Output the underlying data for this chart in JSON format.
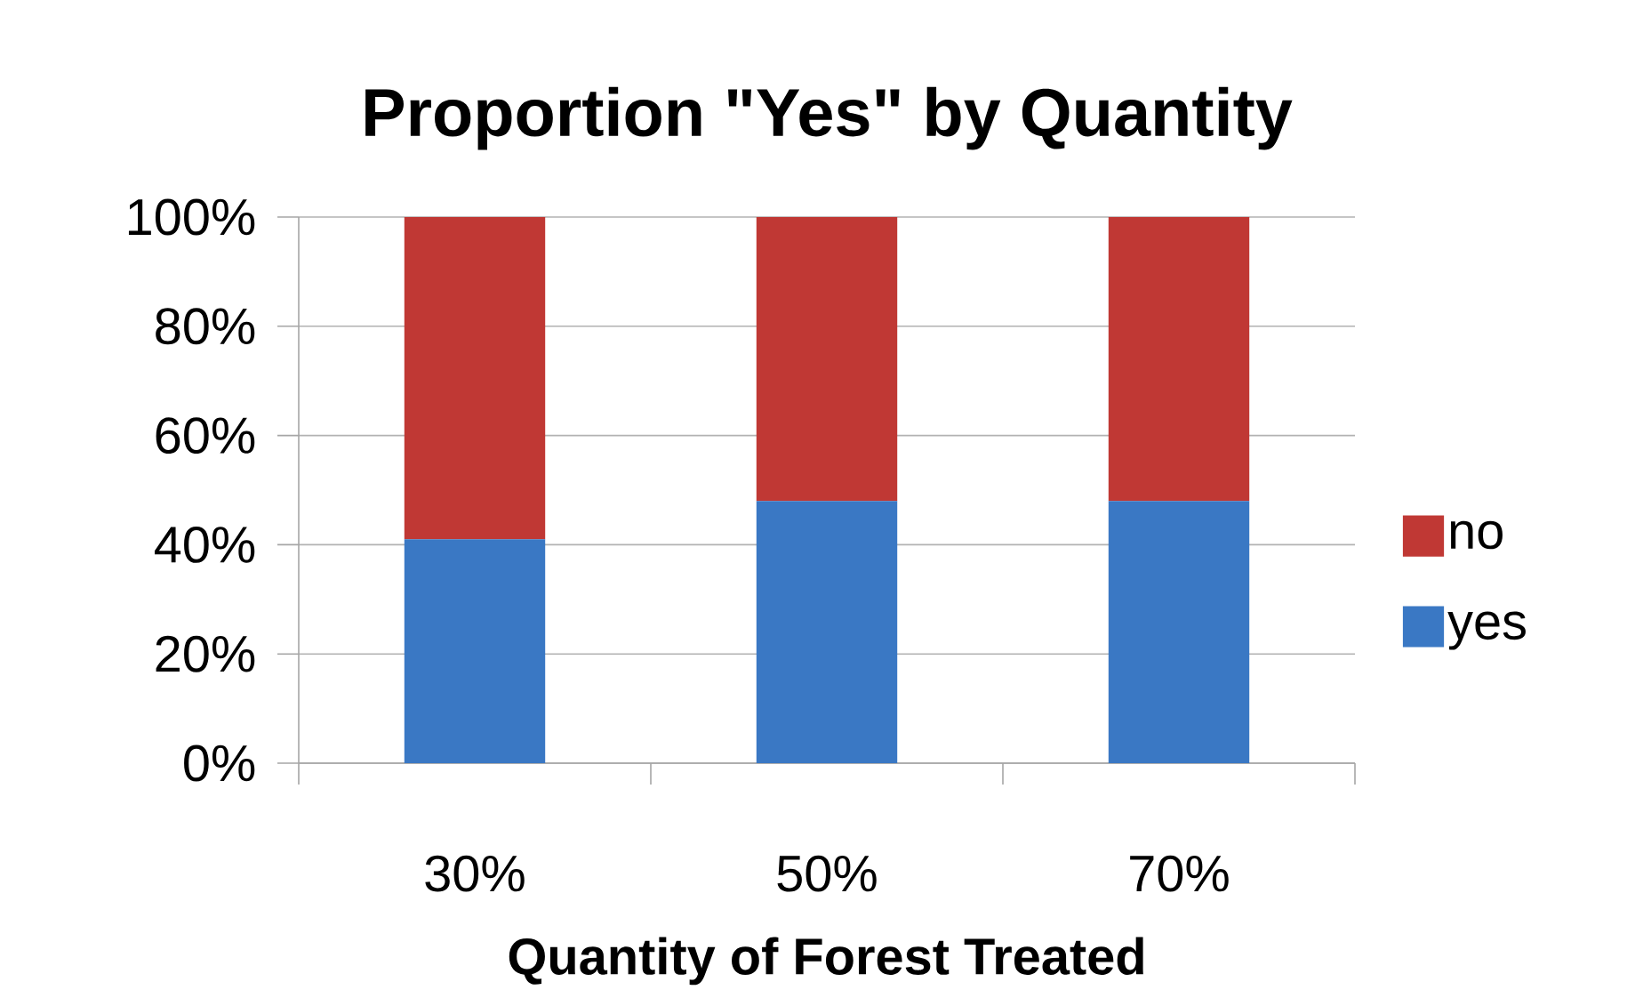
{
  "chart_data": {
    "type": "bar",
    "title": "Proportion \"Yes\" by Quantity",
    "xlabel": "Quantity of Forest Treated",
    "categories": [
      "30%",
      "50%",
      "70%"
    ],
    "stacked": true,
    "series": [
      {
        "name": "yes",
        "color": "#3a78c4",
        "values": [
          41,
          48,
          48
        ]
      },
      {
        "name": "no",
        "color": "#c03834",
        "values": [
          59,
          52,
          52
        ]
      }
    ],
    "ylim": [
      0,
      100
    ],
    "yticks": [
      {
        "value": 0,
        "label": "0%"
      },
      {
        "value": 20,
        "label": "20%"
      },
      {
        "value": 40,
        "label": "40%"
      },
      {
        "value": 60,
        "label": "60%"
      },
      {
        "value": 80,
        "label": "80%"
      },
      {
        "value": 100,
        "label": "100%"
      }
    ],
    "grid": "y",
    "legend": "right"
  }
}
